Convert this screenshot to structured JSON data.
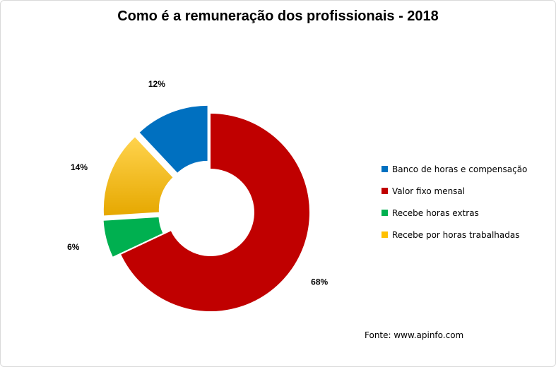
{
  "chart_data": {
    "type": "pie",
    "title": "Como é a remuneração dos profissionais - 2018",
    "categories": [
      "Valor fixo mensal",
      "Recebe horas extras",
      "Recebe por horas trabalhadas",
      "Banco de horas e compensação"
    ],
    "values": [
      68,
      6,
      14,
      12
    ],
    "data_labels": [
      "68%",
      "6%",
      "14%",
      "12%"
    ],
    "colors": [
      "#C00000",
      "#00B050",
      "#FFC000",
      "#0070C0"
    ],
    "donut": true,
    "exploded": true,
    "legend": {
      "position": "right",
      "entries": [
        {
          "label": "Banco de horas e compensação",
          "color": "#0070C0"
        },
        {
          "label": "Valor fixo mensal",
          "color": "#C00000"
        },
        {
          "label": "Recebe horas extras",
          "color": "#00B050"
        },
        {
          "label": "Recebe por horas trabalhadas",
          "color": "#FFC000"
        }
      ]
    }
  },
  "source_note": "Fonte: www.apinfo.com"
}
